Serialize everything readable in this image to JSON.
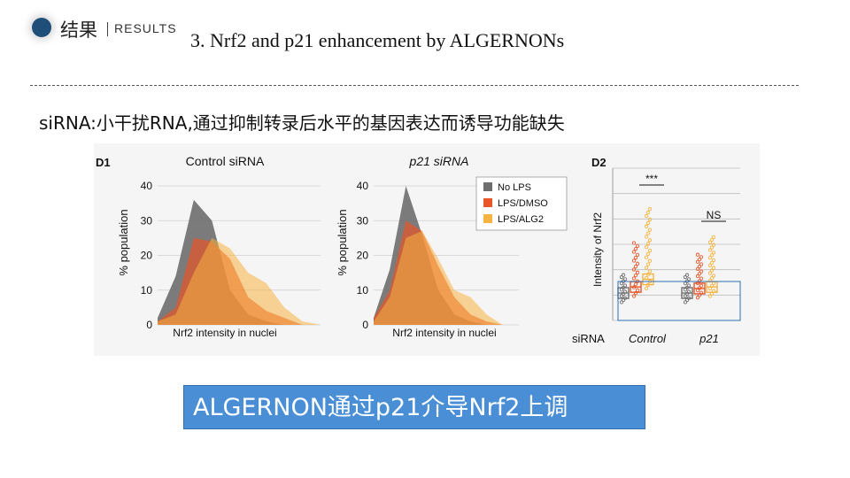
{
  "header": {
    "section": "结果",
    "section_en": "RESULTS"
  },
  "title": "3. Nrf2 and p21 enhancement by ALGERNONs",
  "subtitle": "siRNA:小干扰RNA,通过抑制转录后水平的基因表达而诱导功能缺失",
  "callout": "ALGERNON通过p21介导Nrf2上调",
  "colors": {
    "no_lps": "#6e6e6e",
    "lps_dmso": "#e8562a",
    "lps_alg2": "#f5b342",
    "accent": "#1f4e79"
  },
  "chart_data": [
    {
      "type": "area",
      "panel_label": "D1",
      "title": "Control siRNA",
      "xlabel": "Nrf2 intensity in nuclei",
      "ylabel": "% population",
      "yticks": [
        0,
        10,
        20,
        30,
        40
      ],
      "ylim": [
        0,
        40
      ],
      "x": [
        0,
        1,
        2,
        3,
        4,
        5,
        6,
        7,
        8,
        9
      ],
      "series": [
        {
          "name": "No LPS",
          "values": [
            2,
            14,
            36,
            30,
            10,
            3,
            1,
            0,
            0,
            0
          ]
        },
        {
          "name": "LPS/DMSO",
          "values": [
            1,
            5,
            25,
            24,
            19,
            8,
            4,
            2,
            0,
            0
          ]
        },
        {
          "name": "LPS/ALG2",
          "values": [
            1,
            3,
            15,
            25,
            22,
            15,
            12,
            5,
            1,
            0
          ]
        }
      ]
    },
    {
      "type": "area",
      "panel_title": "p21 siRNA",
      "xlabel": "Nrf2 intensity in nuclei",
      "ylabel": "% population",
      "yticks": [
        0,
        10,
        20,
        30,
        40
      ],
      "ylim": [
        0,
        40
      ],
      "x": [
        0,
        1,
        2,
        3,
        4,
        5,
        6,
        7,
        8,
        9
      ],
      "series": [
        {
          "name": "No LPS",
          "values": [
            2,
            16,
            40,
            26,
            10,
            3,
            1,
            0,
            0,
            0
          ]
        },
        {
          "name": "LPS/DMSO",
          "values": [
            2,
            10,
            30,
            27,
            17,
            8,
            3,
            1,
            0,
            0
          ]
        },
        {
          "name": "LPS/ALG2",
          "values": [
            1,
            8,
            25,
            27,
            19,
            10,
            8,
            3,
            0,
            0
          ]
        }
      ],
      "legend": [
        "No LPS",
        "LPS/DMSO",
        "LPS/ALG2"
      ],
      "legend_position": "top-right"
    },
    {
      "type": "scatter",
      "panel_label": "D2",
      "ylabel": "Intensity of Nrf2",
      "row_label": "siRNA",
      "groups": [
        "Control",
        "p21"
      ],
      "series_order": [
        "No LPS",
        "LPS/DMSO",
        "LPS/ALG2"
      ],
      "box_medians": [
        {
          "group": "Control",
          "values": [
            0.18,
            0.22,
            0.27
          ]
        },
        {
          "group": "p21",
          "values": [
            0.18,
            0.21,
            0.22
          ]
        }
      ],
      "annotations": [
        {
          "group": "Control",
          "text": "***"
        },
        {
          "group": "p21",
          "text": "NS"
        }
      ]
    }
  ]
}
